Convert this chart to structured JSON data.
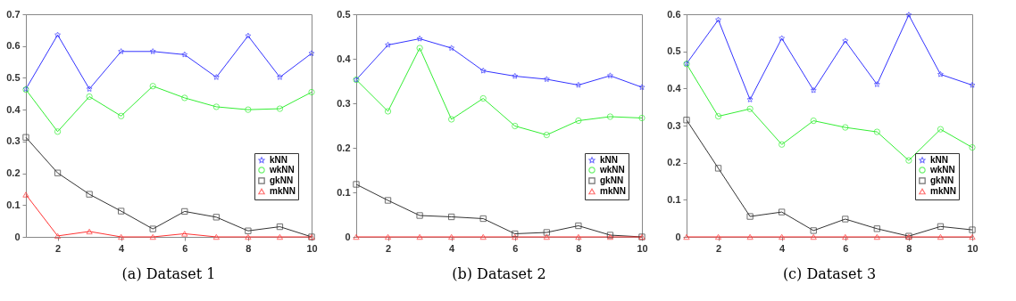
{
  "chart_data": [
    {
      "type": "line",
      "title": "(a) Dataset 1",
      "x": [
        1,
        2,
        3,
        4,
        5,
        6,
        7,
        8,
        9,
        10
      ],
      "xlim": [
        1,
        10
      ],
      "xticks": [
        2,
        4,
        6,
        8,
        10
      ],
      "ylim": [
        0,
        0.7
      ],
      "yticks": [
        0,
        0.1,
        0.2,
        0.3,
        0.4,
        0.5,
        0.6,
        0.7
      ],
      "grid": false,
      "legend": "bottom right",
      "series": [
        {
          "name": "kNN",
          "color": "#3333ff",
          "marker": "star",
          "values": [
            0.465,
            0.635,
            0.465,
            0.583,
            0.583,
            0.573,
            0.502,
            0.632,
            0.502,
            0.577
          ]
        },
        {
          "name": "wkNN",
          "color": "#33ee33",
          "marker": "circle",
          "values": [
            0.463,
            0.331,
            0.441,
            0.38,
            0.474,
            0.437,
            0.409,
            0.4,
            0.403,
            0.455
          ]
        },
        {
          "name": "gkNN",
          "color": "#333333",
          "marker": "square",
          "values": [
            0.313,
            0.201,
            0.134,
            0.081,
            0.025,
            0.08,
            0.062,
            0.019,
            0.032,
            0
          ]
        },
        {
          "name": "mkNN",
          "color": "#ff3333",
          "marker": "triangle",
          "values": [
            0.133,
            0.003,
            0.017,
            0,
            0,
            0.01,
            0,
            0,
            0,
            0
          ]
        }
      ]
    },
    {
      "type": "line",
      "title": "(b) Dataset 2",
      "x": [
        1,
        2,
        3,
        4,
        5,
        6,
        7,
        8,
        9,
        10
      ],
      "xlim": [
        1,
        10
      ],
      "xticks": [
        2,
        4,
        6,
        8,
        10
      ],
      "ylim": [
        0,
        0.5
      ],
      "yticks": [
        0,
        0.1,
        0.2,
        0.3,
        0.4,
        0.5
      ],
      "grid": false,
      "legend": "bottom right",
      "series": [
        {
          "name": "kNN",
          "color": "#3333ff",
          "marker": "star",
          "values": [
            0.353,
            0.431,
            0.445,
            0.424,
            0.373,
            0.361,
            0.354,
            0.341,
            0.362,
            0.336
          ]
        },
        {
          "name": "wkNN",
          "color": "#33ee33",
          "marker": "circle",
          "values": [
            0.353,
            0.282,
            0.424,
            0.264,
            0.311,
            0.249,
            0.229,
            0.261,
            0.27,
            0.267
          ]
        },
        {
          "name": "gkNN",
          "color": "#333333",
          "marker": "square",
          "values": [
            0.118,
            0.082,
            0.048,
            0.045,
            0.041,
            0.007,
            0.01,
            0.025,
            0.004,
            0
          ]
        },
        {
          "name": "mkNN",
          "color": "#ff3333",
          "marker": "triangle",
          "values": [
            0,
            0,
            0,
            0,
            0,
            0,
            0,
            0,
            0,
            0
          ]
        }
      ]
    },
    {
      "type": "line",
      "title": "(c) Dataset 3",
      "x": [
        1,
        2,
        3,
        4,
        5,
        6,
        7,
        8,
        9,
        10
      ],
      "xlim": [
        1,
        10
      ],
      "xticks": [
        2,
        4,
        6,
        8,
        10
      ],
      "ylim": [
        0,
        0.6
      ],
      "yticks": [
        0,
        0.1,
        0.2,
        0.3,
        0.4,
        0.5,
        0.6
      ],
      "grid": false,
      "legend": "bottom right",
      "series": [
        {
          "name": "kNN",
          "color": "#3333ff",
          "marker": "star",
          "values": [
            0.467,
            0.585,
            0.37,
            0.535,
            0.395,
            0.528,
            0.411,
            0.598,
            0.438,
            0.409
          ]
        },
        {
          "name": "wkNN",
          "color": "#33ee33",
          "marker": "circle",
          "values": [
            0.466,
            0.325,
            0.345,
            0.249,
            0.313,
            0.295,
            0.283,
            0.206,
            0.29,
            0.241
          ]
        },
        {
          "name": "gkNN",
          "color": "#333333",
          "marker": "square",
          "values": [
            0.315,
            0.185,
            0.055,
            0.067,
            0.017,
            0.048,
            0.022,
            0.002,
            0.028,
            0.019
          ]
        },
        {
          "name": "mkNN",
          "color": "#ff3333",
          "marker": "triangle",
          "values": [
            0,
            0,
            0,
            0,
            0,
            0,
            0,
            0,
            0,
            0
          ]
        }
      ]
    }
  ]
}
